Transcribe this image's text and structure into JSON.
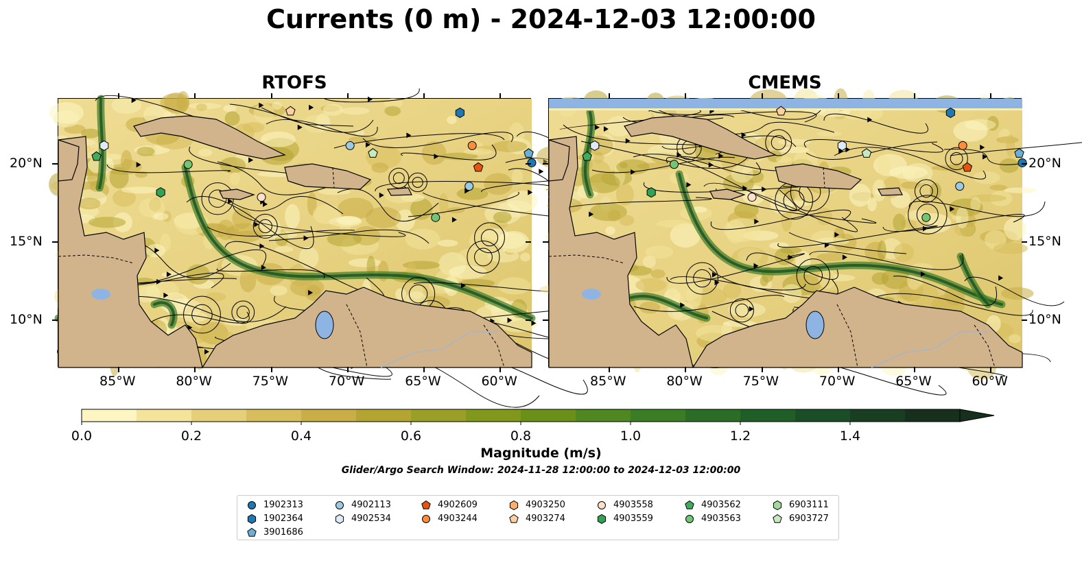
{
  "title": "Currents (0 m) - 2024-12-03 12:00:00",
  "panels": [
    {
      "title": "RTOFS"
    },
    {
      "title": "CMEMS"
    }
  ],
  "lon_ticks": [
    "85°W",
    "80°W",
    "75°W",
    "70°W",
    "65°W",
    "60°W"
  ],
  "lat_ticks": [
    "20°N",
    "15°N",
    "10°N"
  ],
  "colorbar": {
    "label": "Magnitude (m/s)",
    "ticks": [
      "0.0",
      "0.2",
      "0.4",
      "0.6",
      "0.8",
      "1.0",
      "1.2",
      "1.4"
    ],
    "vmin": 0.0,
    "vmax": 1.6,
    "step": 0.1,
    "extend": "max",
    "colors": [
      "#fdf6c3",
      "#f3e39b",
      "#e5cf78",
      "#d7bd5c",
      "#c9ad46",
      "#b4a432",
      "#9aa027",
      "#82981c",
      "#6b9018",
      "#4f8820",
      "#3b7d24",
      "#2b6d26",
      "#205e28",
      "#1b4e26",
      "#193e22",
      "#17301d"
    ]
  },
  "search_window": "Glider/Argo Search Window: 2024-11-28 12:00:00 to 2024-12-03 12:00:00",
  "legend": [
    {
      "id": "1902313",
      "marker": "circle",
      "color": "#1f77b4"
    },
    {
      "id": "1902364",
      "marker": "hexagon",
      "color": "#1f77b4"
    },
    {
      "id": "3901686",
      "marker": "pentagon",
      "color": "#6baed6"
    },
    {
      "id": "4902113",
      "marker": "circle",
      "color": "#9ecae1"
    },
    {
      "id": "4902534",
      "marker": "hexagon",
      "color": "#deebf7"
    },
    {
      "id": "4902609",
      "marker": "pentagon",
      "color": "#e6550d"
    },
    {
      "id": "4903244",
      "marker": "circle",
      "color": "#fd8d3c"
    },
    {
      "id": "4903250",
      "marker": "hexagon",
      "color": "#fdae6b"
    },
    {
      "id": "4903274",
      "marker": "pentagon",
      "color": "#fdd0a2"
    },
    {
      "id": "4903558",
      "marker": "circle",
      "color": "#fee0c8"
    },
    {
      "id": "4903559",
      "marker": "hexagon",
      "color": "#31a354"
    },
    {
      "id": "4903562",
      "marker": "pentagon",
      "color": "#41ab5d"
    },
    {
      "id": "4903563",
      "marker": "circle",
      "color": "#74c476"
    },
    {
      "id": "6903111",
      "marker": "hexagon",
      "color": "#a1d99b"
    },
    {
      "id": "6903727",
      "marker": "pentagon",
      "color": "#c7e9c0"
    }
  ],
  "colors": {
    "land": "#d2b48c",
    "lake": "#8eb4e3",
    "ocean_low": "#f3e39b",
    "ocean_high": "#1f6b2a"
  }
}
